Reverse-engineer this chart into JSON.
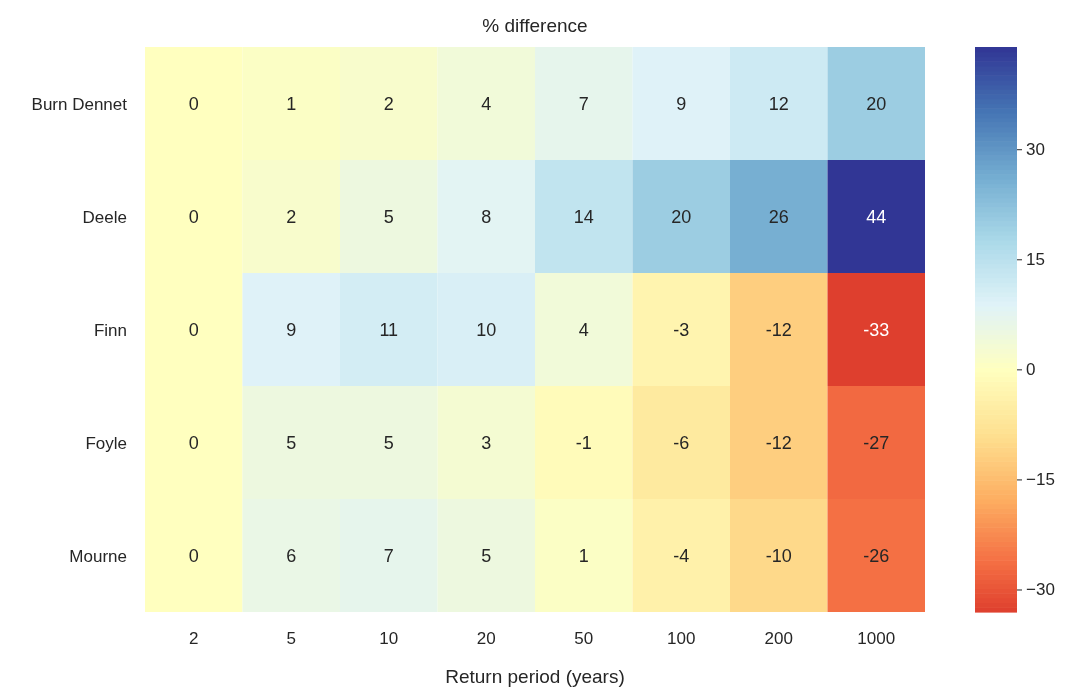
{
  "chart_data": {
    "type": "heatmap",
    "title": "% difference",
    "xlabel": "Return period (years)",
    "categories": [
      "2",
      "5",
      "10",
      "20",
      "50",
      "100",
      "200",
      "1000"
    ],
    "y_categories": [
      "Burn Dennet",
      "Deele",
      "Finn",
      "Foyle",
      "Mourne"
    ],
    "cells": [
      [
        0,
        1,
        2,
        4,
        7,
        9,
        12,
        20
      ],
      [
        0,
        2,
        5,
        8,
        14,
        20,
        26,
        44
      ],
      [
        0,
        9,
        11,
        10,
        4,
        -3,
        -12,
        -33
      ],
      [
        0,
        5,
        5,
        3,
        -1,
        -6,
        -12,
        -27
      ],
      [
        0,
        6,
        7,
        5,
        1,
        -4,
        -10,
        -26
      ]
    ],
    "data_labels": true,
    "clim": [
      -33,
      44
    ],
    "cticks": [
      -30,
      -15,
      0,
      15,
      30
    ]
  }
}
